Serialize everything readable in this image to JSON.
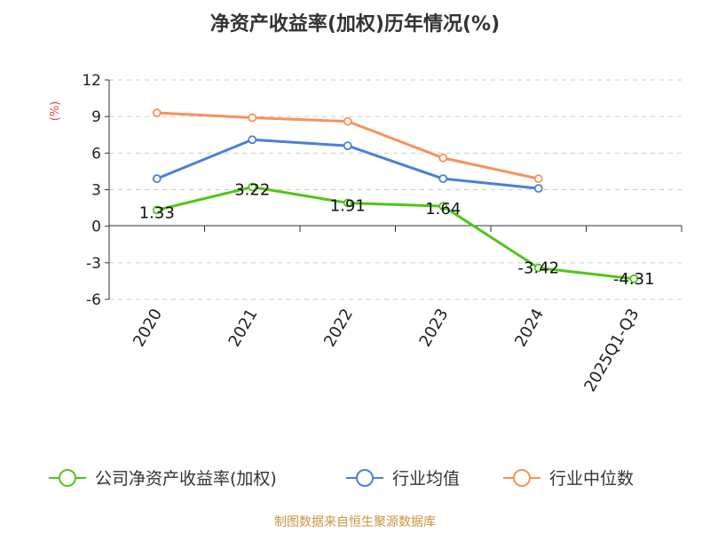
{
  "chart_data": {
    "type": "line",
    "title": "净资产收益率(加权)历年情况(%)",
    "ylabel": "(%)",
    "xlabel": "",
    "categories": [
      "2020",
      "2021",
      "2022",
      "2023",
      "2024",
      "2025Q1-Q3"
    ],
    "ylim": [
      -6,
      12
    ],
    "yticks": [
      12,
      9,
      6,
      3,
      0,
      -3,
      -6
    ],
    "grid": true,
    "legend_position": "bottom",
    "series": [
      {
        "name": "公司净资产收益率(加权)",
        "color": "#52c41a",
        "values": [
          1.33,
          3.22,
          1.91,
          1.64,
          -3.42,
          -4.31
        ],
        "labels": [
          "1.33",
          "3.22",
          "1.91",
          "1.64",
          "-3.42",
          "-4.31"
        ]
      },
      {
        "name": "行业均值",
        "color": "#4a7fd8",
        "values": [
          3.9,
          7.1,
          6.6,
          3.9,
          3.1,
          null
        ]
      },
      {
        "name": "行业中位数",
        "color": "#f7925a",
        "values": [
          9.3,
          8.9,
          8.6,
          5.6,
          3.9,
          null
        ]
      }
    ]
  },
  "source": "制图数据来自恒生聚源数据库"
}
